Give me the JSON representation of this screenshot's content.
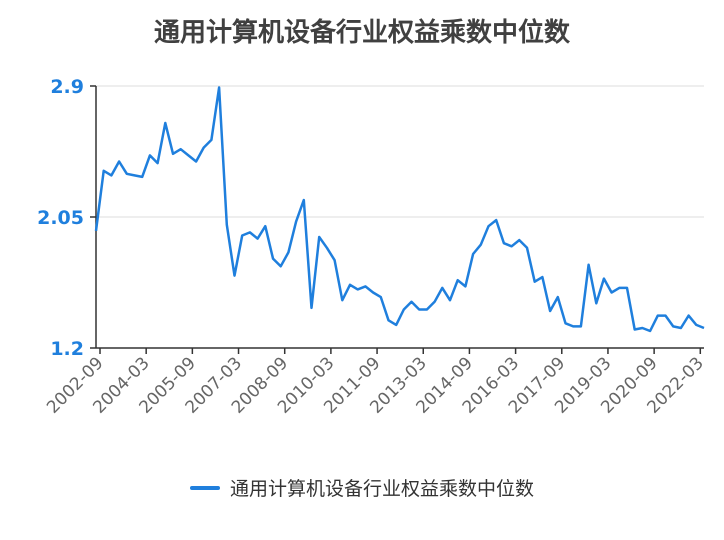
{
  "chart_data": {
    "type": "line",
    "title": "通用计算机设备行业权益乘数中位数",
    "xlabel": "",
    "ylabel": "",
    "ylim": [
      1.2,
      2.9
    ],
    "y_ticks": [
      "1.2",
      "2.05",
      "2.9"
    ],
    "x_tick_labels": [
      "2002-09",
      "2004-03",
      "2005-09",
      "2007-03",
      "2008-09",
      "2010-03",
      "2011-09",
      "2013-03",
      "2014-09",
      "2016-03",
      "2017-09",
      "2019-03",
      "2020-09",
      "2022-03"
    ],
    "legend_position": "bottom",
    "grid": true,
    "series": [
      {
        "name": "通用计算机设备行业权益乘数中位数",
        "color": "#1f7fdd",
        "values": [
          1.96,
          2.35,
          2.32,
          2.41,
          2.33,
          2.32,
          2.31,
          2.45,
          2.4,
          2.66,
          2.46,
          2.49,
          2.45,
          2.41,
          2.5,
          2.55,
          2.89,
          2.0,
          1.67,
          1.93,
          1.95,
          1.91,
          1.99,
          1.78,
          1.73,
          1.82,
          2.02,
          2.16,
          1.46,
          1.92,
          1.85,
          1.77,
          1.51,
          1.61,
          1.58,
          1.6,
          1.56,
          1.53,
          1.38,
          1.35,
          1.45,
          1.5,
          1.45,
          1.45,
          1.5,
          1.59,
          1.51,
          1.64,
          1.6,
          1.81,
          1.87,
          1.99,
          2.03,
          1.88,
          1.86,
          1.9,
          1.85,
          1.63,
          1.66,
          1.44,
          1.53,
          1.36,
          1.34,
          1.34,
          1.74,
          1.49,
          1.65,
          1.56,
          1.59,
          1.59,
          1.32,
          1.33,
          1.31,
          1.41,
          1.41,
          1.34,
          1.33,
          1.41,
          1.35,
          1.33
        ]
      }
    ]
  }
}
